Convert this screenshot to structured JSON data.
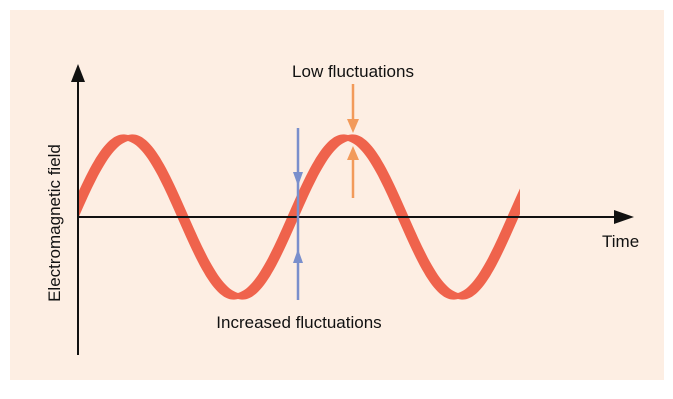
{
  "diagram": {
    "y_axis_label": "Electromagnetic field",
    "x_axis_label": "Time",
    "low_fluctuations_label": "Low fluctuations",
    "increased_fluctuations_label": "Increased fluctuations"
  },
  "colors": {
    "panel_background": "#fdeee3",
    "wave": "#ef634c",
    "low_marker": "#f29a5a",
    "increased_marker": "#7a8fcc",
    "axes": "#111111"
  }
}
